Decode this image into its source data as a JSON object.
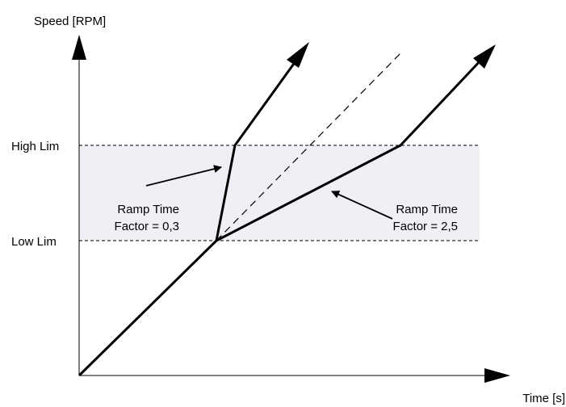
{
  "axes": {
    "y_label": "Speed [RPM]",
    "x_label": "Time [s]"
  },
  "levels": {
    "high": "High Lim",
    "low": "Low Lim"
  },
  "annotations": {
    "left": {
      "line1": "Ramp Time",
      "line2": "Factor = 0,3"
    },
    "right": {
      "line1": "Ramp Time",
      "line2": "Factor = 2,5"
    }
  },
  "colors": {
    "band": "#eef0f5",
    "line": "#000000"
  }
}
